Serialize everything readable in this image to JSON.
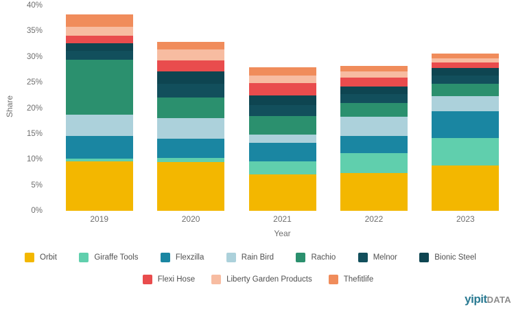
{
  "chart_data": {
    "type": "bar",
    "stacked": true,
    "title": "",
    "xlabel": "Year",
    "ylabel": "Share",
    "categories": [
      "2019",
      "2020",
      "2021",
      "2022",
      "2023"
    ],
    "ylim": [
      0,
      40
    ],
    "ytick_step": 5,
    "y_tick_labels": [
      "0%",
      "5%",
      "10%",
      "15%",
      "20%",
      "25%",
      "30%",
      "35%",
      "40%"
    ],
    "grid": false,
    "legend_position": "bottom",
    "legend_row_break": 7,
    "series": [
      {
        "name": "Orbit",
        "color": "#F3B700",
        "values": [
          9.7,
          9.5,
          7.1,
          7.3,
          8.8
        ]
      },
      {
        "name": "Giraffe Tools",
        "color": "#60CFAD",
        "values": [
          0.5,
          0.8,
          2.5,
          3.9,
          5.4
        ]
      },
      {
        "name": "Flexzilla",
        "color": "#1A86A2",
        "values": [
          4.4,
          3.7,
          3.7,
          3.4,
          5.2
        ]
      },
      {
        "name": "Rain Bird",
        "color": "#ACD1DB",
        "values": [
          4.2,
          4.1,
          1.6,
          3.7,
          2.9
        ]
      },
      {
        "name": "Rachio",
        "color": "#2B906E",
        "values": [
          10.6,
          4.0,
          3.6,
          2.7,
          2.5
        ]
      },
      {
        "name": "Melnor",
        "color": "#124F5C",
        "values": [
          1.8,
          2.6,
          2.1,
          1.7,
          1.6
        ]
      },
      {
        "name": "Bionic Steel",
        "color": "#0E4551",
        "values": [
          1.5,
          2.4,
          1.9,
          1.5,
          1.5
        ]
      },
      {
        "name": "Flexi Hose",
        "color": "#E94C4D",
        "values": [
          1.4,
          2.2,
          2.4,
          1.7,
          1.0
        ]
      },
      {
        "name": "Liberty Garden Products",
        "color": "#F7BCA1",
        "values": [
          1.8,
          2.1,
          1.4,
          1.2,
          0.8
        ]
      },
      {
        "name": "Thefitlife",
        "color": "#F08C5B",
        "values": [
          2.4,
          1.5,
          1.7,
          1.1,
          1.0
        ]
      }
    ]
  },
  "logo": {
    "brand": "yipit",
    "suffix": "DATA"
  }
}
